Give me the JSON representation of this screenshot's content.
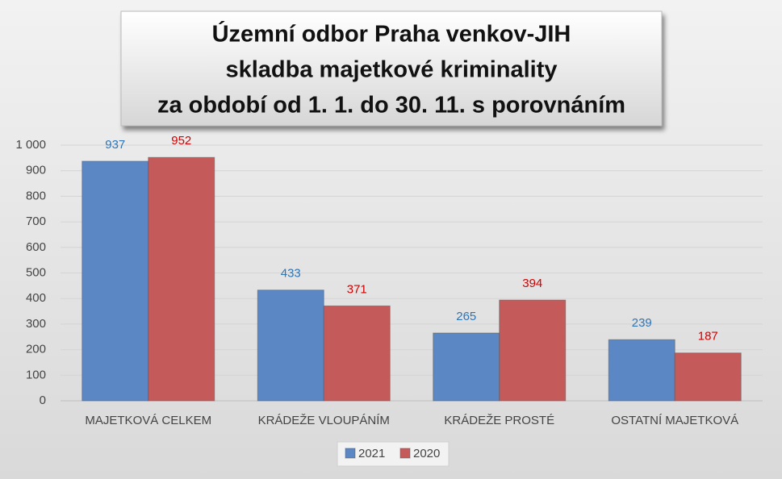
{
  "chart_data": {
    "type": "bar",
    "title": [
      "Územní odbor Praha venkov-JIH",
      "skladba majetkové kriminality",
      "za období od 1. 1. do 30. 11. s porovnáním"
    ],
    "categories": [
      "MAJETKOVÁ CELKEM",
      "KRÁDEŽE VLOUPÁNÍM",
      "KRÁDEŽE PROSTÉ",
      "OSTATNÍ MAJETKOVÁ"
    ],
    "series": [
      {
        "name": "2021",
        "color": "#5b87c5",
        "label_color": "#2e75b6",
        "values": [
          937,
          433,
          265,
          239
        ]
      },
      {
        "name": "2020",
        "color": "#c55a5a",
        "label_color": "#d00000",
        "values": [
          952,
          371,
          394,
          187
        ]
      }
    ],
    "ylim": [
      0,
      1000
    ],
    "yticks": [
      0,
      100,
      200,
      300,
      400,
      500,
      600,
      700,
      800,
      900,
      {
        "value": 1000,
        "label": "1 000"
      }
    ],
    "grid": true,
    "legend": "bottom"
  }
}
